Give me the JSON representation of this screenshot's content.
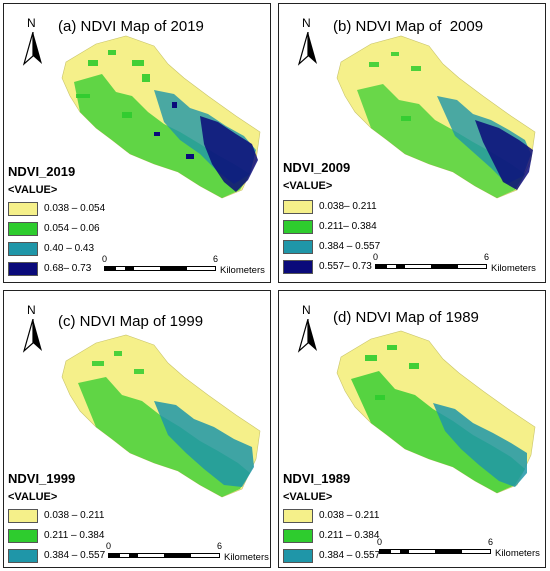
{
  "north_label": "N",
  "scale_bar": {
    "start": "0",
    "end": "6",
    "unit": "Kilometers"
  },
  "panels": [
    {
      "title": "(a) NDVI Map of 2019",
      "legend_title": "NDVI_2019",
      "legend_sub": "<VALUE>",
      "classes": [
        {
          "label": "0.038 – 0.054",
          "color": "#f5f08a"
        },
        {
          "label": "0.054 – 0.06",
          "color": "#2ecc2e"
        },
        {
          "label": "0.40 – 0.43",
          "color": "#1f96a8"
        },
        {
          "label": "0.68– 0.73",
          "color": "#0a0a7a"
        }
      ]
    },
    {
      "title": "(b) NDVI Map of  2009",
      "legend_title": "NDVI_2009",
      "legend_sub": "<VALUE>",
      "classes": [
        {
          "label": "0.038– 0.211",
          "color": "#f5f08a"
        },
        {
          "label": "0.211– 0.384",
          "color": "#2ecc2e"
        },
        {
          "label": "0.384 – 0.557",
          "color": "#1f96a8"
        },
        {
          "label": "0.557– 0.73",
          "color": "#0a0a7a"
        }
      ]
    },
    {
      "title": "(c) NDVI Map of 1999",
      "legend_title": "NDVI_1999",
      "legend_sub": "<VALUE>",
      "classes": [
        {
          "label": "0.038 – 0.211",
          "color": "#f5f08a"
        },
        {
          "label": "0.211 – 0.384",
          "color": "#2ecc2e"
        },
        {
          "label": "0.384 – 0.557",
          "color": "#1f96a8"
        }
      ]
    },
    {
      "title": "(d) NDVI Map of 1989",
      "legend_title": "NDVI_1989",
      "legend_sub": "<VALUE>",
      "classes": [
        {
          "label": "0.038 – 0.211",
          "color": "#f5f08a"
        },
        {
          "label": "0.211 – 0.384",
          "color": "#2ecc2e"
        },
        {
          "label": "0.384 – 0.557",
          "color": "#1f96a8"
        }
      ]
    }
  ]
}
